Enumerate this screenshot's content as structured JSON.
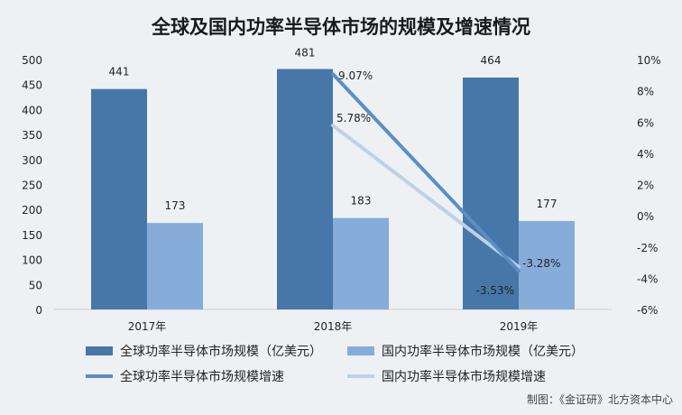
{
  "chart_data": {
    "type": "bar",
    "title": "全球及国内功率半导体市场的规模及增速情况",
    "categories": [
      "2017年",
      "2018年",
      "2019年"
    ],
    "series": [
      {
        "name": "全球功率半导体市场规模（亿美元）",
        "kind": "bar",
        "axis": "left",
        "values": [
          441,
          481,
          464
        ],
        "labels": [
          "441",
          "481",
          "464"
        ],
        "color": "#4677a8"
      },
      {
        "name": "国内功率半导体市场规模（亿美元）",
        "kind": "bar",
        "axis": "left",
        "values": [
          173,
          183,
          177
        ],
        "labels": [
          "173",
          "183",
          "177"
        ],
        "color": "#86acd9"
      },
      {
        "name": "全球功率半导体市场规模增速",
        "kind": "line",
        "axis": "right",
        "values": [
          null,
          9.07,
          -3.53
        ],
        "labels": [
          "",
          "9.07%",
          "-3.53%"
        ],
        "color": "#5b8fc4"
      },
      {
        "name": "国内功率半导体市场规模增速",
        "kind": "line",
        "axis": "right",
        "values": [
          null,
          5.78,
          -3.28
        ],
        "labels": [
          "",
          "5.78%",
          "-3.28%"
        ],
        "color": "#bcd1ea"
      }
    ],
    "y_left": {
      "min": 0,
      "max": 500,
      "ticks": [
        "0",
        "50",
        "100",
        "150",
        "200",
        "250",
        "300",
        "350",
        "400",
        "450",
        "500"
      ]
    },
    "y_right": {
      "min": -6,
      "max": 10,
      "ticks": [
        "-6%",
        "-4%",
        "-2%",
        "0%",
        "2%",
        "4%",
        "6%",
        "8%",
        "10%"
      ]
    },
    "grid": false,
    "legend_position": "bottom"
  },
  "credit": "制图：《金证研》北方资本中心"
}
